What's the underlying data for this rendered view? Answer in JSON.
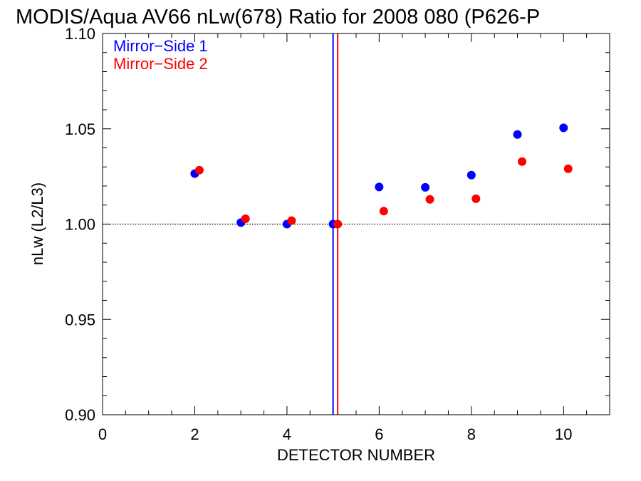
{
  "chart_data": {
    "type": "scatter",
    "title": "MODIS/Aqua AV66 nLw(678) Ratio for 2008 080 (P626-P",
    "xlabel": "DETECTOR NUMBER",
    "ylabel": "nLw (L2/L3)",
    "xlim": [
      0,
      11
    ],
    "ylim": [
      0.9,
      1.1
    ],
    "xticks": [
      0,
      2,
      4,
      6,
      8,
      10
    ],
    "xtick_labels": [
      "0",
      "2",
      "4",
      "6",
      "8",
      "10"
    ],
    "yticks": [
      0.9,
      0.95,
      1.0,
      1.05,
      1.1
    ],
    "ytick_labels": [
      "0.90",
      "0.95",
      "1.00",
      "1.05",
      "1.10"
    ],
    "reference_line_y": 1.0,
    "reference_lines_x": [
      {
        "x": 5.0,
        "color": "#0000ff"
      },
      {
        "x": 5.1,
        "color": "#ff0000"
      }
    ],
    "legend_position": "top-left",
    "series": [
      {
        "name": "Mirror−Side 1",
        "color": "#0000ff",
        "x": [
          2,
          3,
          4,
          5,
          6,
          7,
          8,
          9,
          10
        ],
        "y": [
          1.0265,
          1.0008,
          1.0,
          1.0,
          1.0195,
          1.0193,
          1.0257,
          1.047,
          1.0505
        ]
      },
      {
        "name": "Mirror−Side 2",
        "color": "#ff0000",
        "x": [
          2.1,
          3.1,
          4.1,
          5.1,
          6.1,
          7.1,
          8.1,
          9.1,
          10.1
        ],
        "y": [
          1.0283,
          1.0028,
          1.0018,
          1.0,
          1.0068,
          1.013,
          1.0133,
          1.0328,
          1.029
        ]
      }
    ]
  }
}
